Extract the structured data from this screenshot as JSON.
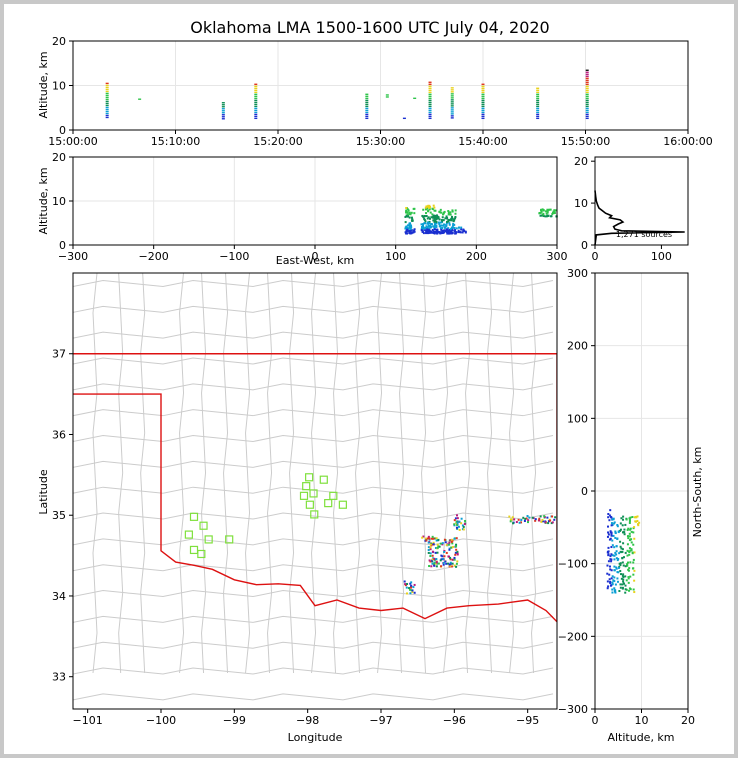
{
  "title": "Oklahoma LMA 1500-1600 UTC July 04, 2020",
  "colors": {
    "state_border": "#dd1111",
    "county_lines": "#cccccc",
    "stations": "#7fe03c",
    "grid": "#e6e6e6",
    "sources_palette": [
      "#1a2fd0",
      "#0b9fd4",
      "#0e8f55",
      "#2ec44a",
      "#e8d21c",
      "#e0351d",
      "#b81a7c",
      "#111111"
    ]
  },
  "chart_data": [
    {
      "id": "time_altitude",
      "type": "scatter",
      "title": "Oklahoma LMA 1500-1600 UTC July 04, 2020",
      "ylabel": "Altitude, km",
      "xlabel": "",
      "xlim": [
        "15:00:00",
        "16:00:00"
      ],
      "ylim": [
        0,
        20
      ],
      "x_ticks": [
        "15:00:00",
        "15:10:00",
        "15:20:00",
        "15:30:00",
        "15:40:00",
        "15:50:00",
        "16:00:00"
      ],
      "y_ticks": [
        0,
        10,
        20
      ],
      "grid": true,
      "bursts": [
        {
          "time": "15:03:20",
          "alt_min": 2.8,
          "alt_max": 10.8
        },
        {
          "time": "15:06:30",
          "alt_min": 6.9,
          "alt_max": 7.2
        },
        {
          "time": "15:14:40",
          "alt_min": 2.5,
          "alt_max": 6.2
        },
        {
          "time": "15:17:50",
          "alt_min": 2.6,
          "alt_max": 10.3
        },
        {
          "time": "15:28:40",
          "alt_min": 2.6,
          "alt_max": 8.2
        },
        {
          "time": "15:30:40",
          "alt_min": 7.4,
          "alt_max": 8.2
        },
        {
          "time": "15:32:20",
          "alt_min": 2.6,
          "alt_max": 2.9
        },
        {
          "time": "15:33:20",
          "alt_min": 7.1,
          "alt_max": 7.4
        },
        {
          "time": "15:34:50",
          "alt_min": 2.6,
          "alt_max": 11.0
        },
        {
          "time": "15:37:00",
          "alt_min": 2.7,
          "alt_max": 9.6
        },
        {
          "time": "15:40:00",
          "alt_min": 2.6,
          "alt_max": 10.5
        },
        {
          "time": "15:45:20",
          "alt_min": 2.6,
          "alt_max": 9.5
        },
        {
          "time": "15:50:10",
          "alt_min": 2.6,
          "alt_max": 13.8
        }
      ]
    },
    {
      "id": "eastwest_altitude",
      "type": "scatter",
      "xlabel": "East-West, km",
      "ylabel": "Altitude, km",
      "xlim": [
        -300,
        300
      ],
      "ylim": [
        0,
        20
      ],
      "x_ticks": [
        -300,
        -200,
        -100,
        0,
        100,
        200,
        300
      ],
      "y_ticks": [
        0,
        10,
        20
      ],
      "grid": true,
      "clusters": [
        {
          "x_min": 112,
          "x_max": 124,
          "alt_min": 2.6,
          "alt_max": 8.5
        },
        {
          "x_min": 132,
          "x_max": 150,
          "alt_min": 2.7,
          "alt_max": 9.0
        },
        {
          "x_min": 148,
          "x_max": 175,
          "alt_min": 2.6,
          "alt_max": 8.0
        },
        {
          "x_min": 175,
          "x_max": 188,
          "alt_min": 2.8,
          "alt_max": 4.0
        },
        {
          "x_min": 278,
          "x_max": 300,
          "alt_min": 6.5,
          "alt_max": 8.2
        }
      ]
    },
    {
      "id": "altitude_histogram",
      "type": "line",
      "x_ticks": [
        0,
        100
      ],
      "y_ticks": [
        0,
        10,
        20
      ],
      "xlim": [
        0,
        140
      ],
      "ylim": [
        0,
        21
      ],
      "annotation": "1,271 sources",
      "profile": [
        {
          "alt": 0.0,
          "count": 0
        },
        {
          "alt": 2.4,
          "count": 2
        },
        {
          "alt": 2.8,
          "count": 25
        },
        {
          "alt": 3.1,
          "count": 135
        },
        {
          "alt": 3.4,
          "count": 40
        },
        {
          "alt": 3.8,
          "count": 30
        },
        {
          "alt": 4.4,
          "count": 28
        },
        {
          "alt": 5.0,
          "count": 35
        },
        {
          "alt": 5.5,
          "count": 42
        },
        {
          "alt": 6.0,
          "count": 38
        },
        {
          "alt": 6.5,
          "count": 22
        },
        {
          "alt": 7.0,
          "count": 25
        },
        {
          "alt": 7.6,
          "count": 16
        },
        {
          "alt": 8.2,
          "count": 11
        },
        {
          "alt": 8.8,
          "count": 6
        },
        {
          "alt": 9.5,
          "count": 4
        },
        {
          "alt": 10.5,
          "count": 2
        },
        {
          "alt": 11.5,
          "count": 1
        },
        {
          "alt": 13.0,
          "count": 0
        }
      ]
    },
    {
      "id": "plan_view_map",
      "type": "scatter",
      "xlabel": "Longitude",
      "ylabel": "Latitude",
      "xlim": [
        -101.2,
        -94.6
      ],
      "ylim": [
        32.6,
        38.0
      ],
      "x_ticks": [
        -101,
        -100,
        -99,
        -98,
        -97,
        -96,
        -95
      ],
      "y_ticks": [
        33,
        34,
        35,
        36,
        37
      ],
      "stations": [
        [
          -99.55,
          34.98
        ],
        [
          -99.42,
          34.87
        ],
        [
          -99.62,
          34.76
        ],
        [
          -99.35,
          34.7
        ],
        [
          -99.55,
          34.57
        ],
        [
          -99.45,
          34.52
        ],
        [
          -99.07,
          34.7
        ],
        [
          -97.98,
          35.47
        ],
        [
          -97.78,
          35.44
        ],
        [
          -98.02,
          35.36
        ],
        [
          -97.92,
          35.27
        ],
        [
          -98.05,
          35.24
        ],
        [
          -97.65,
          35.24
        ],
        [
          -97.97,
          35.13
        ],
        [
          -97.72,
          35.15
        ],
        [
          -97.52,
          35.13
        ],
        [
          -97.91,
          35.01
        ]
      ],
      "source_clusters": [
        {
          "lon_min": -96.35,
          "lon_max": -95.95,
          "lat_min": 34.36,
          "lat_max": 34.72
        },
        {
          "lon_min": -96.02,
          "lon_max": -95.85,
          "lat_min": 34.8,
          "lat_max": 35.0
        },
        {
          "lon_min": -96.68,
          "lon_max": -96.53,
          "lat_min": 34.03,
          "lat_max": 34.18
        },
        {
          "lon_min": -96.45,
          "lon_max": -96.28,
          "lat_min": 34.68,
          "lat_max": 34.74
        },
        {
          "lon_min": -95.25,
          "lon_max": -94.62,
          "lat_min": 34.9,
          "lat_max": 34.99
        }
      ]
    },
    {
      "id": "altitude_northsouth",
      "type": "scatter",
      "xlabel": "Altitude, km",
      "ylabel": "North-South, km",
      "xlim": [
        0,
        20
      ],
      "ylim": [
        -300,
        300
      ],
      "x_ticks": [
        0,
        10,
        20
      ],
      "y_ticks": [
        -300,
        -200,
        -100,
        0,
        100,
        200,
        300
      ],
      "grid": true,
      "clusters": [
        {
          "alt_min": 2.6,
          "alt_max": 3.6,
          "ns_min": -135,
          "ns_max": -25
        },
        {
          "alt_min": 3.5,
          "alt_max": 8.5,
          "ns_min": -140,
          "ns_max": -35
        },
        {
          "alt_min": 8.5,
          "alt_max": 9.5,
          "ns_min": -50,
          "ns_max": -35
        }
      ]
    }
  ]
}
